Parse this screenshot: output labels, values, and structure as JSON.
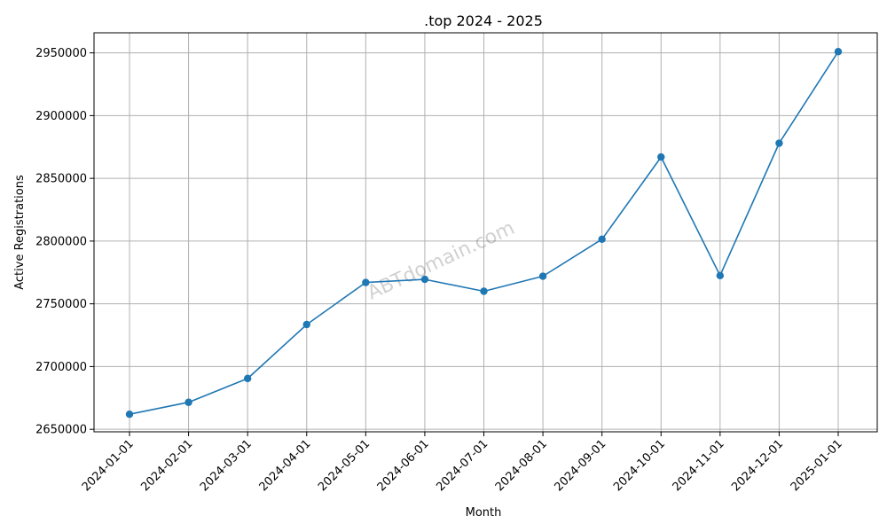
{
  "chart_data": {
    "type": "line",
    "title": ".top 2024 - 2025",
    "xlabel": "Month",
    "ylabel": "Active Registrations",
    "categories": [
      "2024-01-01",
      "2024-02-01",
      "2024-03-01",
      "2024-04-01",
      "2024-05-01",
      "2024-06-01",
      "2024-07-01",
      "2024-08-01",
      "2024-09-01",
      "2024-10-01",
      "2024-11-01",
      "2024-12-01",
      "2025-01-01"
    ],
    "series": [
      {
        "values": [
          2662000,
          2671500,
          2690500,
          2733500,
          2767000,
          2769500,
          2760000,
          2772000,
          2801500,
          2867000,
          2772500,
          2878000,
          2951000
        ],
        "color": "#1f77b4",
        "marker": "circle"
      }
    ],
    "ylim": [
      2648000,
      2966000
    ],
    "yticks": [
      2650000,
      2700000,
      2750000,
      2800000,
      2850000,
      2900000,
      2950000
    ],
    "grid": true,
    "watermark": "ABTdomain.com"
  }
}
